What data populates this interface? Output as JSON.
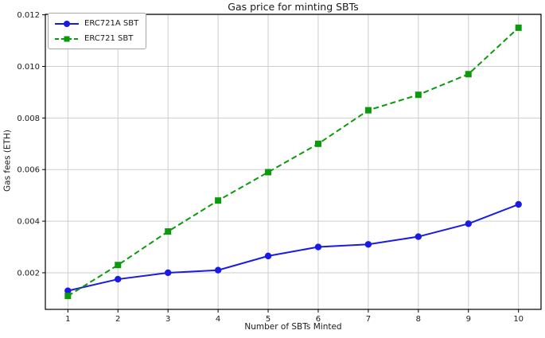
{
  "chart_data": {
    "type": "line",
    "title": "Gas price for minting SBTs",
    "xlabel": "Number of SBTs Minted",
    "ylabel": "Gas fees (ETH)",
    "x": [
      1,
      2,
      3,
      4,
      5,
      6,
      7,
      8,
      9,
      10
    ],
    "xticks": [
      1,
      2,
      3,
      4,
      5,
      6,
      7,
      8,
      9,
      10
    ],
    "yticks": [
      0.002,
      0.004,
      0.006,
      0.008,
      0.01,
      0.012
    ],
    "xlim": [
      0.55,
      10.45
    ],
    "ylim": [
      0.00058,
      0.01202
    ],
    "grid": true,
    "grid_color": "#cdcdcd",
    "axis_color": "#000000",
    "tick_label_color": "#1a1a1a",
    "legend_position": "upper left",
    "series": [
      {
        "name": "ERC721A SBT",
        "color": "#1a1ae6",
        "line_style": "solid",
        "marker": "circle",
        "values": [
          0.0013,
          0.00175,
          0.002,
          0.0021,
          0.00265,
          0.003,
          0.0031,
          0.0034,
          0.0039,
          0.00465
        ]
      },
      {
        "name": "ERC721 SBT",
        "color": "#0a9a0a",
        "line_style": "dashed",
        "marker": "square",
        "values": [
          0.0011,
          0.0023,
          0.0036,
          0.0048,
          0.0059,
          0.007,
          0.0083,
          0.0089,
          0.0097,
          0.0115
        ]
      }
    ]
  }
}
